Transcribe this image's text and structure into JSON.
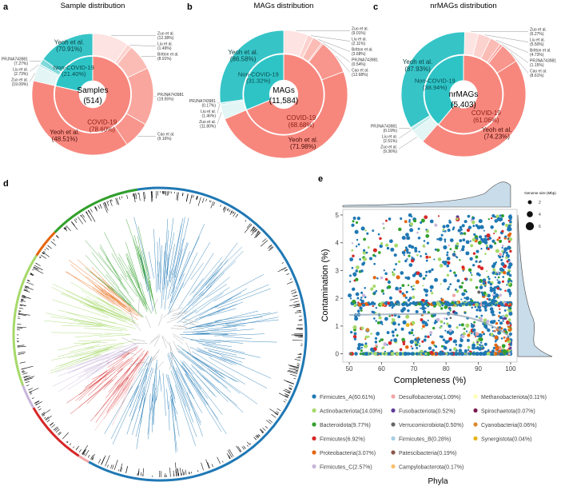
{
  "panels": {
    "a": {
      "letter": "a",
      "title": "Sample distribution",
      "center_label": "Samples",
      "center_value": "(514)"
    },
    "b": {
      "letter": "b",
      "title": "MAGs distribution",
      "center_label": "MAGs",
      "center_value": "(11,584)"
    },
    "c": {
      "letter": "c",
      "title": "nrMAGs distribution",
      "center_label": "nrMAGs",
      "center_value": "(5,403)"
    },
    "d": {
      "letter": "d"
    },
    "e": {
      "letter": "e"
    }
  },
  "colors": {
    "covid": "#f7877d",
    "non_covid": "#2ec4c6",
    "axis_box": "#d0d0d0",
    "density": "#c9dcea"
  },
  "chart_data": [
    {
      "id": "a",
      "type": "pie",
      "title": "Sample distribution",
      "inner": [
        {
          "name": "COVID-19",
          "value": 78.6,
          "label": "(78.60%)"
        },
        {
          "name": "Non-COVID-19",
          "value": 21.4,
          "label": "(21.40%)"
        }
      ],
      "outer_covid": [
        {
          "name": "Zuo et al.",
          "value": 12.38,
          "label": "(12.38%)"
        },
        {
          "name": "Liu et al.",
          "value": 1.49,
          "label": "(1.49%)"
        },
        {
          "name": "Britton et al.",
          "value": 8.91,
          "label": "(8.91%)"
        },
        {
          "name": "PRJNA743981",
          "value": 19.55,
          "label": "(19.55%)"
        },
        {
          "name": "Cao et al.",
          "value": 9.16,
          "label": "(9.16%)"
        },
        {
          "name": "Yeoh et al.",
          "value": 48.51,
          "label": "(48.51%)"
        }
      ],
      "outer_non_covid": [
        {
          "name": "Zuo et al.",
          "value": 19.09,
          "label": "(19.09%)"
        },
        {
          "name": "Liu et al.",
          "value": 2.73,
          "label": "(2.73%)"
        },
        {
          "name": "PRJNA743981",
          "value": 7.27,
          "label": "(7.27%)"
        },
        {
          "name": "Yeoh et al.",
          "value": 70.91,
          "label": "(70.91%)"
        }
      ]
    },
    {
      "id": "b",
      "type": "pie",
      "title": "MAGs distribution",
      "inner": [
        {
          "name": "COVID-19",
          "value": 68.68,
          "label": "(68.68%)"
        },
        {
          "name": "Non-COVID-19",
          "value": 31.32,
          "label": "(31.32%)"
        }
      ],
      "outer_covid": [
        {
          "name": "Zuo et al.",
          "value": 9.01,
          "label": "(9.01%)"
        },
        {
          "name": "Liu et al.",
          "value": 2.11,
          "label": "(2.11%)"
        },
        {
          "name": "Britton et al.",
          "value": 3.68,
          "label": "(3.68%)"
        },
        {
          "name": "PRJNA743981",
          "value": 0.54,
          "label": "(0.54%)"
        },
        {
          "name": "Cao et al.",
          "value": 12.68,
          "label": "(12.68%)"
        },
        {
          "name": "Yeoh et al.",
          "value": 71.98,
          "label": "(71.98%)"
        }
      ],
      "outer_non_covid": [
        {
          "name": "Zuo et al.",
          "value": 11.8,
          "label": "(11.80%)"
        },
        {
          "name": "Liu et al.",
          "value": 1.46,
          "label": "(1.46%)"
        },
        {
          "name": "PRJNA743981",
          "value": 0.17,
          "label": "(0.17%)"
        },
        {
          "name": "Yeoh et al.",
          "value": 86.58,
          "label": "(86.58%)"
        }
      ]
    },
    {
      "id": "c",
      "type": "pie",
      "title": "nrMAGs distribution",
      "inner": [
        {
          "name": "COVID-19",
          "value": 61.06,
          "label": "(61.06%)"
        },
        {
          "name": "Non-COVID-19",
          "value": 38.94,
          "label": "(38.94%)"
        }
      ],
      "outer_covid": [
        {
          "name": "Zuo et al.",
          "value": 6.27,
          "label": "(6.27%)"
        },
        {
          "name": "Liu et al.",
          "value": 5.5,
          "label": "(5.50%)"
        },
        {
          "name": "Britton et al.",
          "value": 4.73,
          "label": "(4.73%)"
        },
        {
          "name": "PRJNA743981",
          "value": 1.15,
          "label": "(1.15%)"
        },
        {
          "name": "Cao et al.",
          "value": 8.61,
          "label": "(8.61%)"
        },
        {
          "name": "Yeoh et al.",
          "value": 74.23,
          "label": "(74.23%)"
        }
      ],
      "outer_non_covid": [
        {
          "name": "Zuo et al.",
          "value": 9.36,
          "label": "(9.36%)"
        },
        {
          "name": "Liu et al.",
          "value": 2.51,
          "label": "(2.51%)"
        },
        {
          "name": "PRJNA743981",
          "value": 0.19,
          "label": "(0.19%)"
        },
        {
          "name": "Yeoh et al.",
          "value": 87.93,
          "label": "(87.93%)"
        }
      ]
    },
    {
      "id": "d",
      "type": "tree",
      "legend_title": "Phyla",
      "phyla": [
        {
          "name": "Firmicutes_A",
          "value": 60.61,
          "label": "Firmicutes_A(60.61%)",
          "color": "#1f78b4"
        },
        {
          "name": "Actinobacteriota",
          "value": 14.03,
          "label": "Actinobacteriota(14.03%)",
          "color": "#a6d96a"
        },
        {
          "name": "Bacteroidota",
          "value": 9.77,
          "label": "Bacteroidota(9.77%)",
          "color": "#33a02c"
        },
        {
          "name": "Firmicutes",
          "value": 6.92,
          "label": "Firmicutes(6.92%)",
          "color": "#d62728"
        },
        {
          "name": "Proteobacteria",
          "value": 3.07,
          "label": "Proteobacteria(3.07%)",
          "color": "#e6650d"
        },
        {
          "name": "Firmicutes_C",
          "value": 2.57,
          "label": "Firmicutes_C(2.57%)",
          "color": "#c9b6da"
        },
        {
          "name": "Desulfobacterota",
          "value": 1.09,
          "label": "Desulfobacterota(1.09%)",
          "color": "#f2a5a5"
        },
        {
          "name": "Fusobacteriota",
          "value": 0.52,
          "label": "Fusobacteriota(0.52%)",
          "color": "#5e3c99"
        },
        {
          "name": "Verrucomicrobiota",
          "value": 0.5,
          "label": "Verrucomicrobiota(0.50%)",
          "color": "#666666"
        },
        {
          "name": "Firmicutes_B",
          "value": 0.28,
          "label": "Firmicutes_B(0.28%)",
          "color": "#a6cee3"
        },
        {
          "name": "Patescibacteria",
          "value": 0.19,
          "label": "Patescibacteria(0.19%)",
          "color": "#8c564b"
        },
        {
          "name": "Campylobacterota",
          "value": 0.17,
          "label": "Campylobacterota(0.17%)",
          "color": "#fdbf6f"
        },
        {
          "name": "Methanobacteriota",
          "value": 0.11,
          "label": "Methanobacteriota(0.11%)",
          "color": "#ffffb3"
        },
        {
          "name": "Spirochaetota",
          "value": 0.07,
          "label": "Spirochaetota(0.07%)",
          "color": "#7b1a4e"
        },
        {
          "name": "Cyanobacteria",
          "value": 0.06,
          "label": "Cyanobacteria(0.06%)",
          "color": "#d9892b"
        },
        {
          "name": "Synergistota",
          "value": 0.04,
          "label": "Synergistota(0.04%)",
          "color": "#e7b416"
        }
      ]
    },
    {
      "id": "e",
      "type": "scatter",
      "xlabel": "Completeness (%)",
      "ylabel": "Contamination (%)",
      "xlim": [
        48,
        102
      ],
      "ylim": [
        -0.3,
        5.2
      ],
      "xticks": [
        "50",
        "60",
        "70",
        "80",
        "90",
        "100"
      ],
      "yticks": [
        "0",
        "1",
        "2",
        "3",
        "4",
        "5"
      ],
      "marginal_density": true,
      "grid": false,
      "size_legend": {
        "title": "Genome size (Mbp)",
        "values": [
          "2",
          "4",
          "6"
        ],
        "placement": "top-right"
      }
    }
  ]
}
